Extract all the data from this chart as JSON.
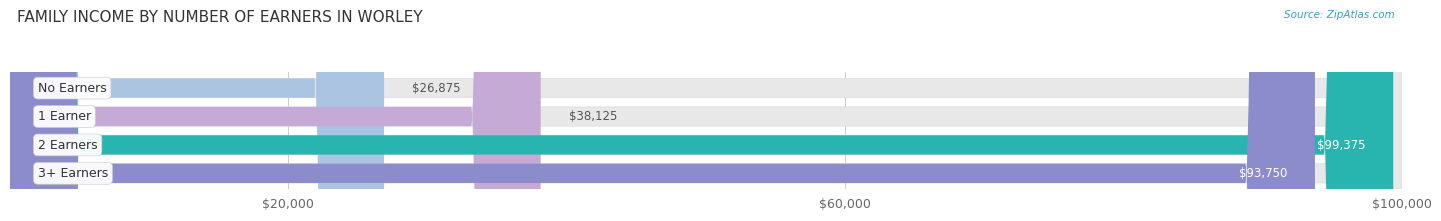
{
  "title": "FAMILY INCOME BY NUMBER OF EARNERS IN WORLEY",
  "source": "Source: ZipAtlas.com",
  "categories": [
    "No Earners",
    "1 Earner",
    "2 Earners",
    "3+ Earners"
  ],
  "values": [
    26875,
    38125,
    99375,
    93750
  ],
  "bar_colors": [
    "#aac4e2",
    "#c4aad4",
    "#29b5af",
    "#8c8ccc"
  ],
  "bg_color": "#f0f0f0",
  "label_colors": [
    "#444444",
    "#444444",
    "#ffffff",
    "#ffffff"
  ],
  "value_colors_outside": "#555555",
  "value_colors_inside": "#ffffff",
  "xlim": [
    0,
    100000
  ],
  "xticks": [
    20000,
    60000,
    100000
  ],
  "xtick_labels": [
    "$20,000",
    "$60,000",
    "$100,000"
  ],
  "fig_bg_color": "#ffffff",
  "title_fontsize": 11,
  "tick_fontsize": 9,
  "value_fontsize": 8.5,
  "label_fontsize": 9
}
